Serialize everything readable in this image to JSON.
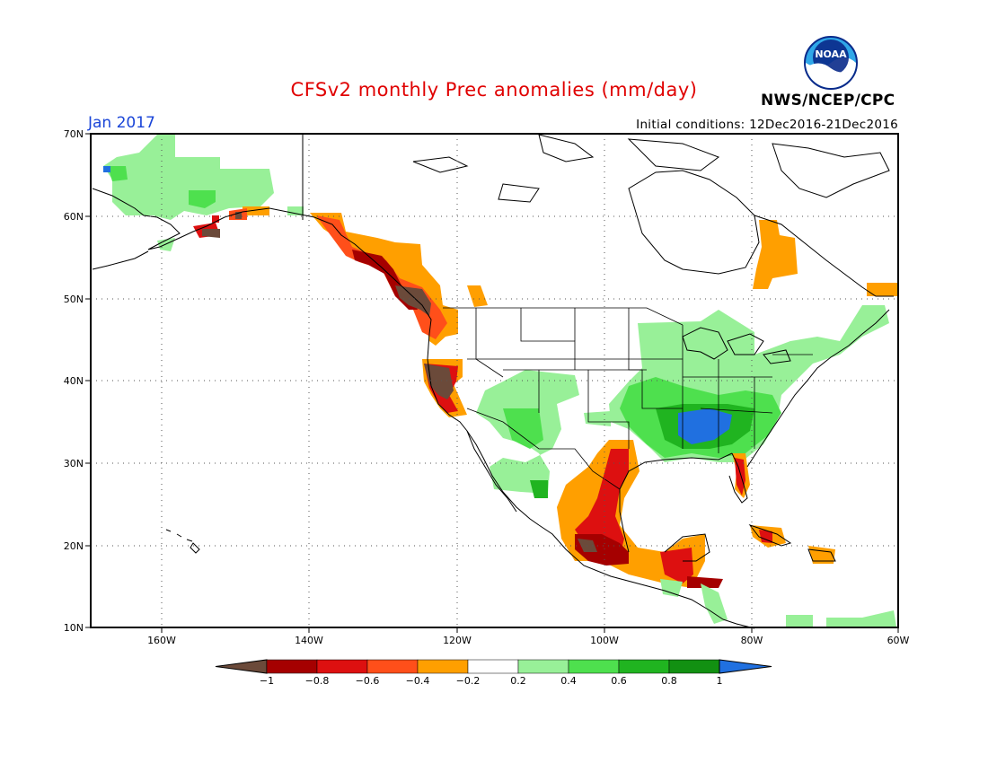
{
  "header": {
    "title": "CFSv2 monthly Prec anomalies (mm/day)",
    "month": "Jan 2017",
    "initial_conditions": "Initial conditions: 12Dec2016-21Dec2016",
    "agency": "NWS/NCEP/CPC",
    "logo_text": "NOAA"
  },
  "axes": {
    "lat_labels": [
      "70N",
      "60N",
      "50N",
      "40N",
      "30N",
      "20N",
      "10N"
    ],
    "lon_labels": [
      "160W",
      "140W",
      "120W",
      "100W",
      "80W",
      "60W"
    ]
  },
  "colorbar": {
    "labels": [
      "−1",
      "−0.8",
      "−0.6",
      "−0.4",
      "−0.2",
      "0.2",
      "0.4",
      "0.6",
      "0.8",
      "1"
    ],
    "colors": [
      "#6b4a3a",
      "#a50000",
      "#dd1010",
      "#ff4f1a",
      "#ff9f00",
      "#ffffff",
      "#98f098",
      "#4ee04e",
      "#20b420",
      "#129012",
      "#2070e0"
    ]
  },
  "map": {
    "lat_range": [
      10,
      70
    ],
    "lon_range": [
      -172,
      -60
    ],
    "colors": {
      "brown": "#6b4a3a",
      "darkred": "#a50000",
      "red": "#dd1010",
      "orangered": "#ff4f1a",
      "orange": "#ff9f00",
      "lightgreen": "#98f098",
      "green": "#4ee04e",
      "medgreen": "#20b420",
      "darkgreen": "#129012",
      "blue": "#2070e0"
    }
  }
}
